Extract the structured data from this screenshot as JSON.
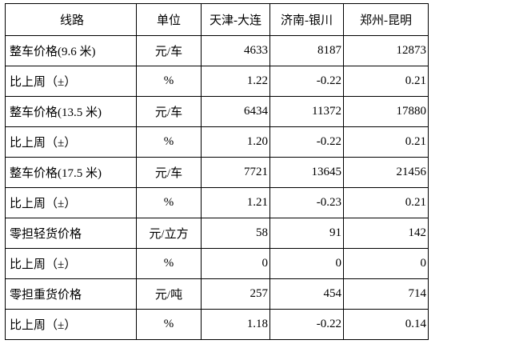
{
  "table": {
    "headers": [
      "线路",
      "单位",
      "天津-大连",
      "济南-银川",
      "郑州-昆明"
    ],
    "rows": [
      [
        "整车价格(9.6 米)",
        "元/车",
        "4633",
        "8187",
        "12873"
      ],
      [
        "比上周（±）",
        "%",
        "1.22",
        "-0.22",
        "0.21"
      ],
      [
        "整车价格(13.5 米)",
        "元/车",
        "6434",
        "11372",
        "17880"
      ],
      [
        "比上周（±）",
        "%",
        "1.20",
        "-0.22",
        "0.21"
      ],
      [
        "整车价格(17.5 米)",
        "元/车",
        "7721",
        "13645",
        "21456"
      ],
      [
        "比上周（±）",
        "%",
        "1.21",
        "-0.23",
        "0.21"
      ],
      [
        "零担轻货价格",
        "元/立方",
        "58",
        "91",
        "142"
      ],
      [
        "比上周（±）",
        "%",
        "0",
        "0",
        "0"
      ],
      [
        "零担重货价格",
        "元/吨",
        "257",
        "454",
        "714"
      ],
      [
        "比上周（±）",
        "%",
        "1.18",
        "-0.22",
        "0.14"
      ]
    ]
  }
}
